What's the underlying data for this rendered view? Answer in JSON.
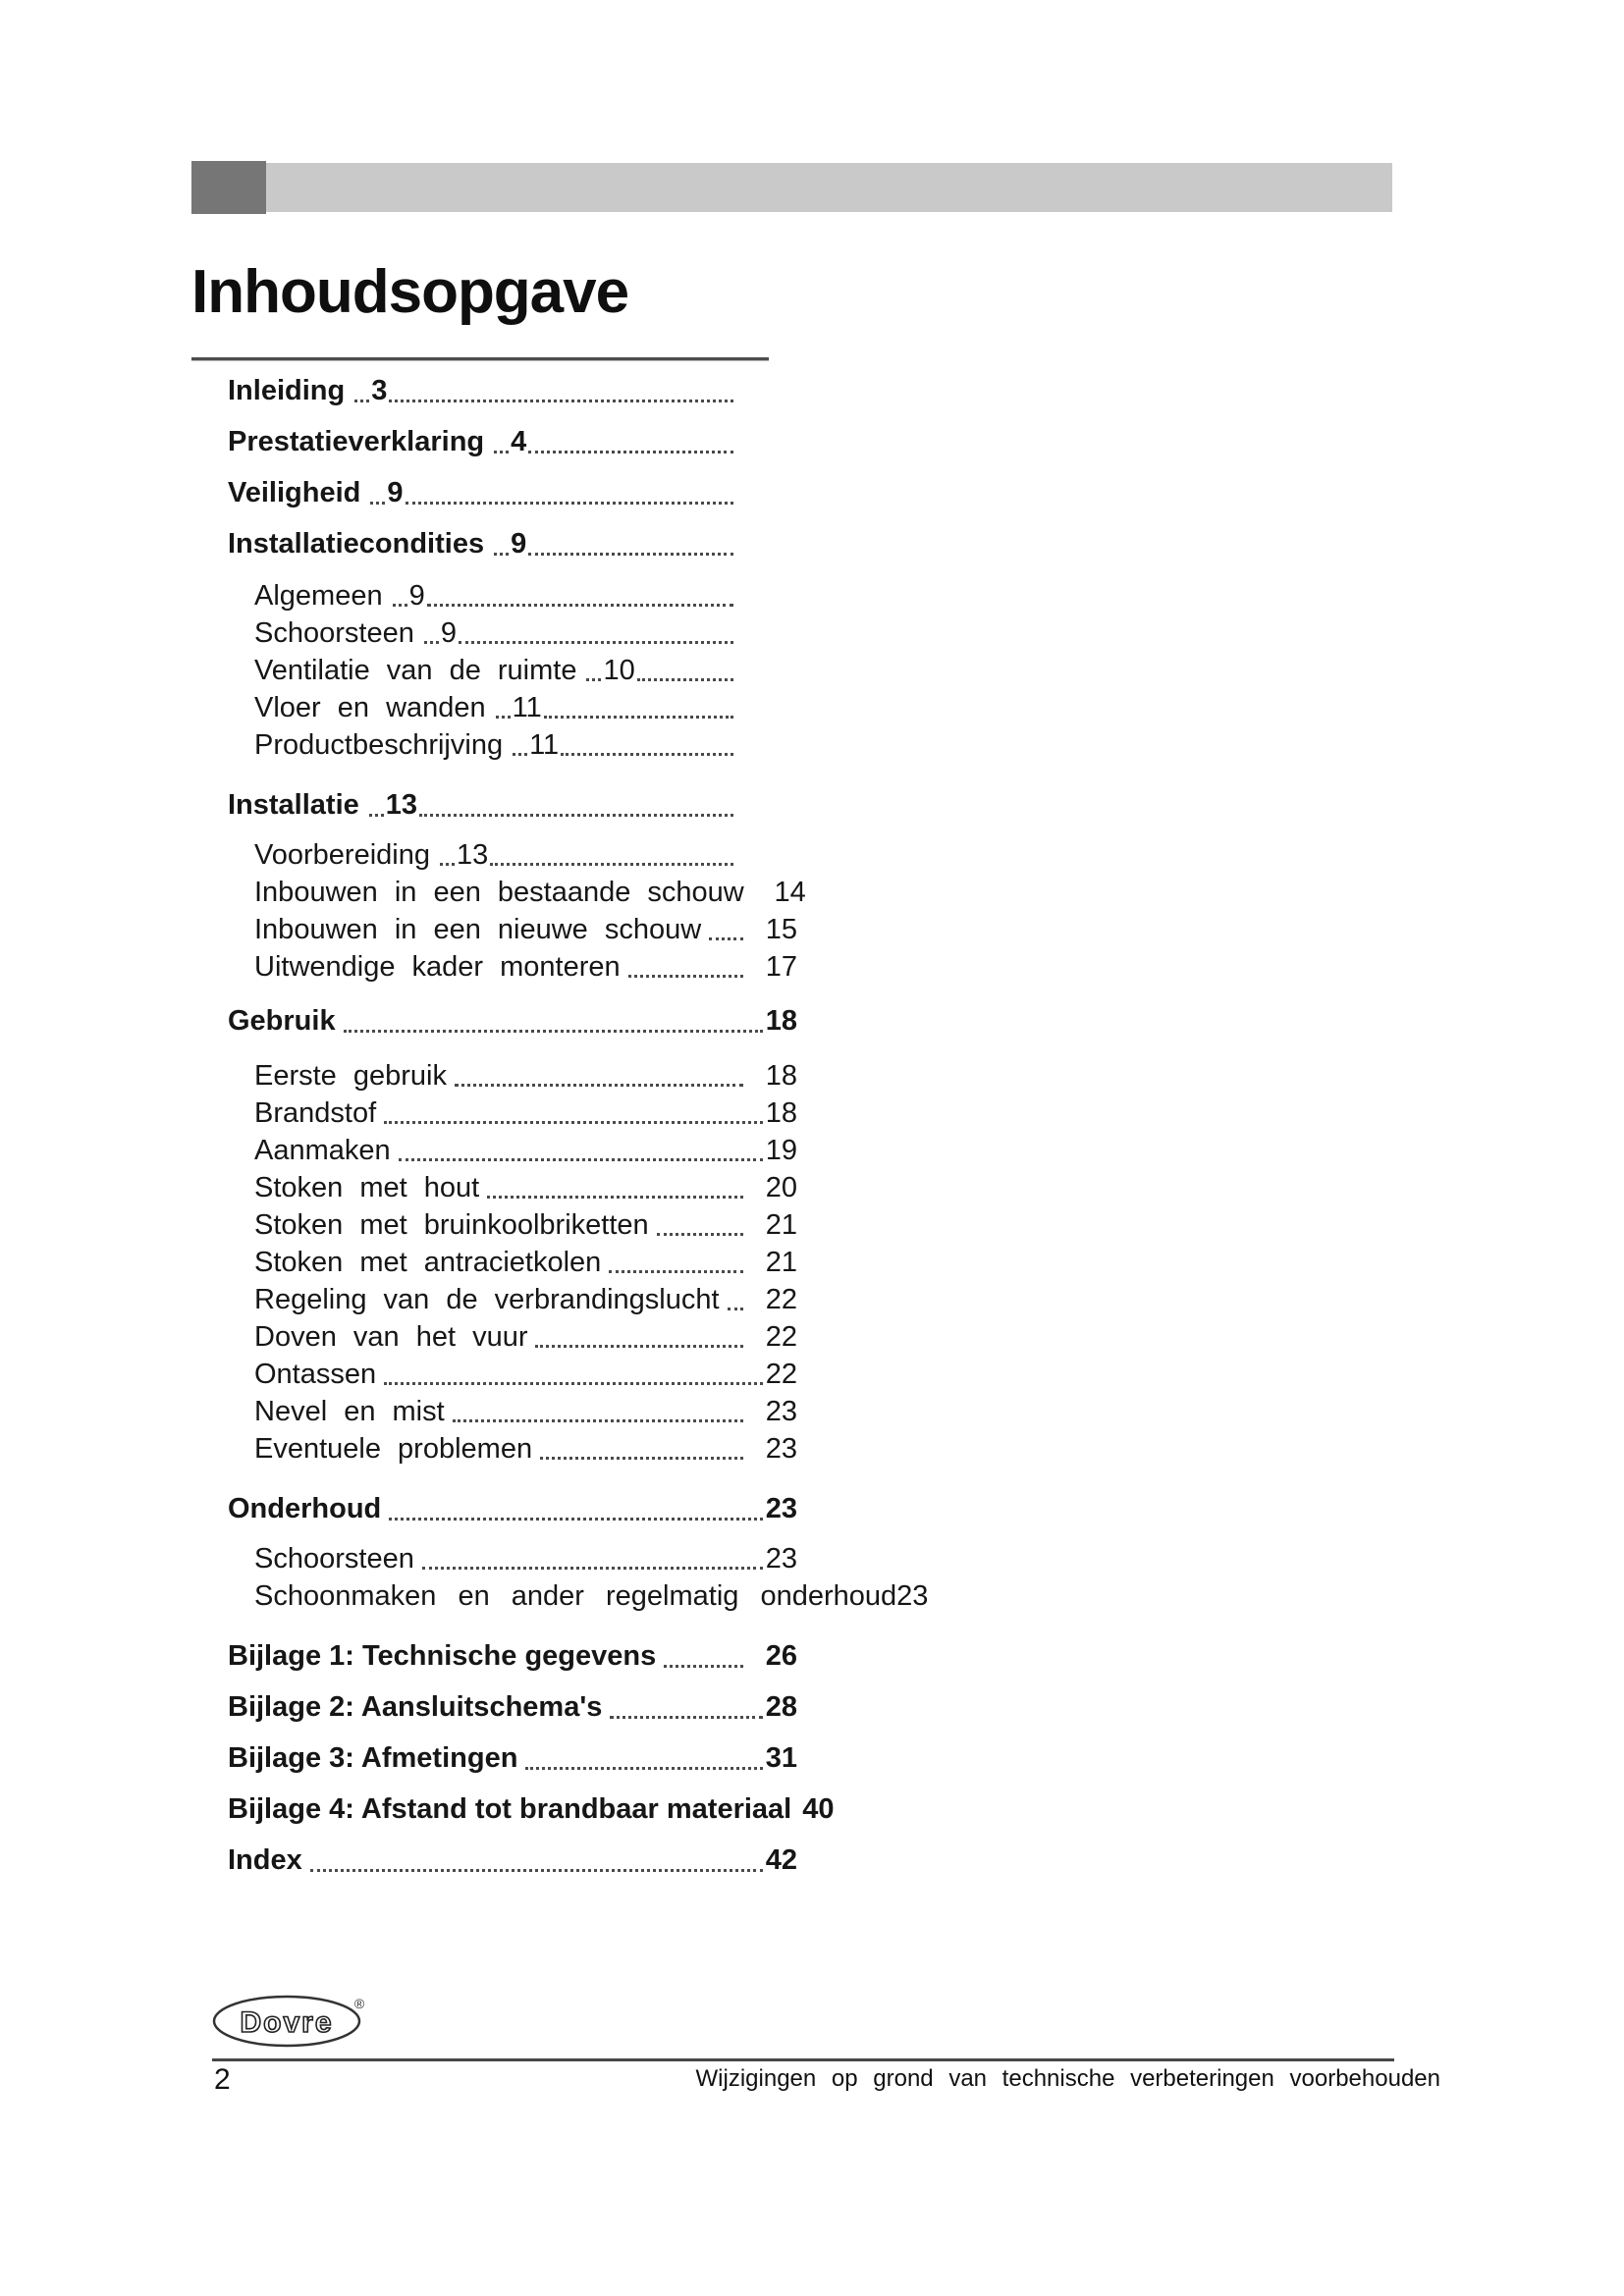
{
  "page": {
    "title": "Inhoudsopgave",
    "number": "2",
    "footer_note": "Wijzigingen op grond van technische verbeteringen voorbehouden"
  },
  "logo": {
    "brand": "Dovre",
    "registered": "®"
  },
  "colors": {
    "header_dark": "#767676",
    "header_light": "#c9c9c9",
    "text": "#161616",
    "leader_dots": "#4a4a4a"
  },
  "toc": {
    "rows": [
      {
        "label": "Inleiding",
        "page": "3",
        "bold": true,
        "indent": 0,
        "mode": "inline",
        "spread": false,
        "gap": 0
      },
      {
        "label": "Prestatieverklaring",
        "page": "4",
        "bold": true,
        "indent": 0,
        "mode": "inline",
        "spread": false,
        "gap": 12
      },
      {
        "label": "Veiligheid",
        "page": "9",
        "bold": true,
        "indent": 0,
        "mode": "inline",
        "spread": false,
        "gap": 12
      },
      {
        "label": "Installatiecondities",
        "page": "9",
        "bold": true,
        "indent": 0,
        "mode": "inline",
        "spread": false,
        "gap": 12
      },
      {
        "label": "Algemeen",
        "page": "9",
        "bold": false,
        "indent": 1,
        "mode": "inline",
        "spread": false,
        "gap": 14
      },
      {
        "label": "Schoorsteen",
        "page": "9",
        "bold": false,
        "indent": 1,
        "mode": "inline",
        "spread": false,
        "gap": 0
      },
      {
        "label": "Ventilatie van de ruimte",
        "page": "10",
        "bold": false,
        "indent": 1,
        "mode": "inline",
        "spread": true,
        "gap": 0
      },
      {
        "label": "Vloer en wanden",
        "page": "11",
        "bold": false,
        "indent": 1,
        "mode": "inline",
        "spread": true,
        "gap": 0
      },
      {
        "label": "Productbeschrijving",
        "page": "11",
        "bold": false,
        "indent": 1,
        "mode": "inline",
        "spread": false,
        "gap": 0
      },
      {
        "label": "Installatie",
        "page": "13",
        "bold": true,
        "indent": 0,
        "mode": "inline",
        "spread": false,
        "gap": 22
      },
      {
        "label": "Voorbereiding",
        "page": "13",
        "bold": false,
        "indent": 1,
        "mode": "inline",
        "spread": false,
        "gap": 12
      },
      {
        "label": "Inbouwen in een bestaande schouw",
        "page": "14",
        "bold": false,
        "indent": 1,
        "mode": "right",
        "spread": true,
        "gap": 0
      },
      {
        "label": "Inbouwen in een nieuwe schouw",
        "page": "15",
        "bold": false,
        "indent": 1,
        "mode": "right",
        "spread": true,
        "gap": 0
      },
      {
        "label": "Uitwendige kader monteren",
        "page": "17",
        "bold": false,
        "indent": 1,
        "mode": "right",
        "spread": true,
        "gap": 0
      },
      {
        "label": "Gebruik",
        "page": "18",
        "bold": true,
        "indent": 0,
        "mode": "end",
        "spread": false,
        "gap": 16
      },
      {
        "label": "Eerste gebruik",
        "page": "18",
        "bold": false,
        "indent": 1,
        "mode": "right",
        "spread": true,
        "gap": 17
      },
      {
        "label": "Brandstof",
        "page": "18",
        "bold": false,
        "indent": 1,
        "mode": "end",
        "spread": false,
        "gap": 0
      },
      {
        "label": "Aanmaken",
        "page": "19",
        "bold": false,
        "indent": 1,
        "mode": "end",
        "spread": false,
        "gap": 0
      },
      {
        "label": "Stoken met hout",
        "page": "20",
        "bold": false,
        "indent": 1,
        "mode": "right",
        "spread": true,
        "gap": 0
      },
      {
        "label": "Stoken met bruinkoolbriketten",
        "page": "21",
        "bold": false,
        "indent": 1,
        "mode": "right",
        "spread": true,
        "gap": 0
      },
      {
        "label": "Stoken met antracietkolen",
        "page": "21",
        "bold": false,
        "indent": 1,
        "mode": "right",
        "spread": true,
        "gap": 0
      },
      {
        "label": "Regeling van de verbrandingslucht",
        "page": "22",
        "bold": false,
        "indent": 1,
        "mode": "right",
        "spread": true,
        "gap": 0
      },
      {
        "label": "Doven van het vuur",
        "page": "22",
        "bold": false,
        "indent": 1,
        "mode": "right",
        "spread": true,
        "gap": 0
      },
      {
        "label": "Ontassen",
        "page": "22",
        "bold": false,
        "indent": 1,
        "mode": "end",
        "spread": false,
        "gap": 0
      },
      {
        "label": "Nevel en mist",
        "page": "23",
        "bold": false,
        "indent": 1,
        "mode": "right",
        "spread": true,
        "gap": 0
      },
      {
        "label": "Eventuele problemen",
        "page": "23",
        "bold": false,
        "indent": 1,
        "mode": "right",
        "spread": true,
        "gap": 0
      },
      {
        "label": "Onderhoud",
        "page": "23",
        "bold": true,
        "indent": 0,
        "mode": "end",
        "spread": false,
        "gap": 22
      },
      {
        "label": "Schoorsteen",
        "page": "23",
        "bold": false,
        "indent": 1,
        "mode": "end",
        "spread": false,
        "gap": 12
      },
      {
        "label": "Schoonmaken en ander regelmatig onderhoud",
        "page": "23",
        "bold": false,
        "indent": 1,
        "mode": "plain",
        "spread": true,
        "gap": 0
      },
      {
        "label": "Bijlage 1: Technische gegevens",
        "page": "26",
        "bold": true,
        "indent": 0,
        "mode": "right",
        "spread": false,
        "gap": 22
      },
      {
        "label": "Bijlage 2: Aansluitschema's",
        "page": "28",
        "bold": true,
        "indent": 0,
        "mode": "end",
        "spread": false,
        "gap": 12
      },
      {
        "label": "Bijlage 3: Afmetingen",
        "page": "31",
        "bold": true,
        "indent": 0,
        "mode": "end",
        "spread": false,
        "gap": 12
      },
      {
        "label": "Bijlage 4: Afstand tot brandbaar materiaal",
        "page": "40",
        "bold": true,
        "indent": 0,
        "mode": "end",
        "spread": false,
        "gap": 12
      },
      {
        "label": "Index",
        "page": "42",
        "bold": true,
        "indent": 0,
        "mode": "end",
        "spread": false,
        "gap": 12
      }
    ]
  }
}
